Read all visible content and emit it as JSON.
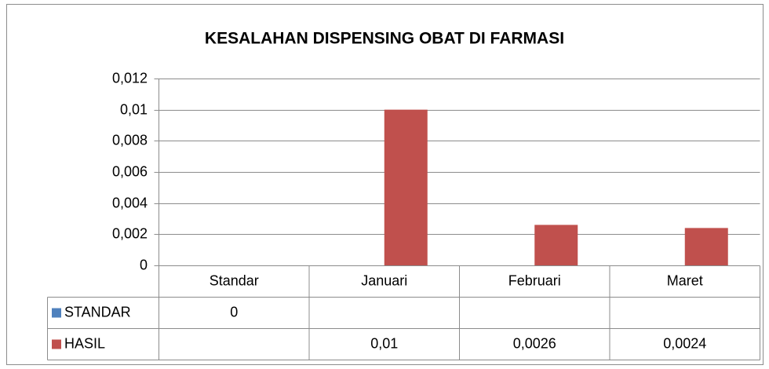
{
  "chart_data": {
    "type": "bar",
    "title": "KESALAHAN DISPENSING OBAT DI FARMASI",
    "categories": [
      "Standar",
      "Januari",
      "Februari",
      "Maret"
    ],
    "series": [
      {
        "name": "STANDAR",
        "color": "#4f81bd",
        "values": [
          0,
          null,
          null,
          null
        ]
      },
      {
        "name": "HASIL",
        "color": "#c0504d",
        "values": [
          null,
          0.01,
          0.0026,
          0.0024
        ],
        "value_labels": [
          null,
          "0,01",
          "0,0026",
          "0,0024"
        ]
      }
    ],
    "ylim": [
      0,
      0.012
    ],
    "yticks": [
      0,
      {
        "value": 0.002,
        "label": "0,002"
      },
      {
        "value": 0.004,
        "label": "0,004"
      },
      {
        "value": 0.006,
        "label": "0,006"
      },
      {
        "value": 0.008,
        "label": "0,008"
      },
      {
        "value": 0.01,
        "label": "0,01"
      },
      {
        "value": 0.012,
        "label": "0,012"
      }
    ],
    "grid": true,
    "legend": "data-table"
  }
}
